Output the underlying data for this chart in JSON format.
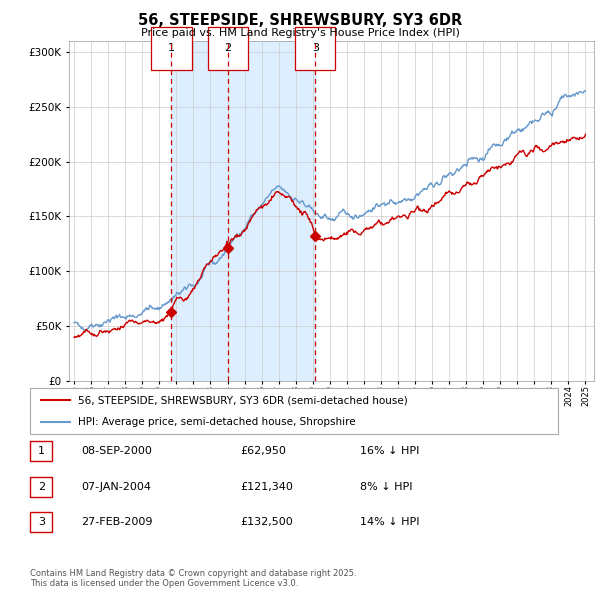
{
  "title": "56, STEEPSIDE, SHREWSBURY, SY3 6DR",
  "subtitle": "Price paid vs. HM Land Registry's House Price Index (HPI)",
  "ylim": [
    0,
    310000
  ],
  "yticks": [
    0,
    50000,
    100000,
    150000,
    200000,
    250000,
    300000
  ],
  "ytick_labels": [
    "£0",
    "£50K",
    "£100K",
    "£150K",
    "£200K",
    "£250K",
    "£300K"
  ],
  "sale_years": [
    2000.71,
    2004.02,
    2009.15
  ],
  "sale_prices": [
    62950,
    121340,
    132500
  ],
  "sale_labels": [
    "1",
    "2",
    "3"
  ],
  "legend_line1": "56, STEEPSIDE, SHREWSBURY, SY3 6DR (semi-detached house)",
  "legend_line2": "HPI: Average price, semi-detached house, Shropshire",
  "table_entries": [
    {
      "label": "1",
      "date": "08-SEP-2000",
      "price": "£62,950",
      "pct": "16% ↓ HPI"
    },
    {
      "label": "2",
      "date": "07-JAN-2004",
      "price": "£121,340",
      "pct": "8% ↓ HPI"
    },
    {
      "label": "3",
      "date": "27-FEB-2009",
      "price": "£132,500",
      "pct": "14% ↓ HPI"
    }
  ],
  "footer": "Contains HM Land Registry data © Crown copyright and database right 2025.\nThis data is licensed under the Open Government Licence v3.0.",
  "red_color": "#cc0000",
  "blue_color": "#6699cc",
  "shade_color": "#ddeeff",
  "grid_color": "#cccccc",
  "hpi_knots_t": [
    0,
    2,
    4,
    5,
    6,
    7,
    8,
    9,
    10,
    11,
    12,
    13,
    14,
    15,
    16,
    17,
    18,
    19,
    20,
    21,
    22,
    23,
    24,
    25,
    26,
    27,
    28,
    29,
    30
  ],
  "hpi_knots_v": [
    50000,
    55000,
    62000,
    68000,
    76000,
    87000,
    103000,
    120000,
    142000,
    160000,
    175000,
    168000,
    152000,
    148000,
    150000,
    155000,
    160000,
    165000,
    172000,
    178000,
    187000,
    195000,
    207000,
    218000,
    228000,
    238000,
    248000,
    258000,
    265000
  ],
  "red_knots_t": [
    0,
    2,
    4,
    5,
    5.71,
    6,
    7,
    8,
    9,
    9.02,
    10,
    11,
    12,
    13,
    14,
    14.15,
    15,
    16,
    17,
    18,
    19,
    20,
    21,
    22,
    23,
    24,
    25,
    26,
    27,
    28,
    29,
    30
  ],
  "red_knots_v": [
    40000,
    44000,
    50000,
    55000,
    62950,
    70000,
    85000,
    105000,
    125000,
    121340,
    140000,
    158000,
    168000,
    162000,
    140000,
    132500,
    130000,
    132000,
    138000,
    143000,
    148000,
    155000,
    162000,
    168000,
    175000,
    185000,
    195000,
    202000,
    210000,
    215000,
    222000,
    225000
  ]
}
